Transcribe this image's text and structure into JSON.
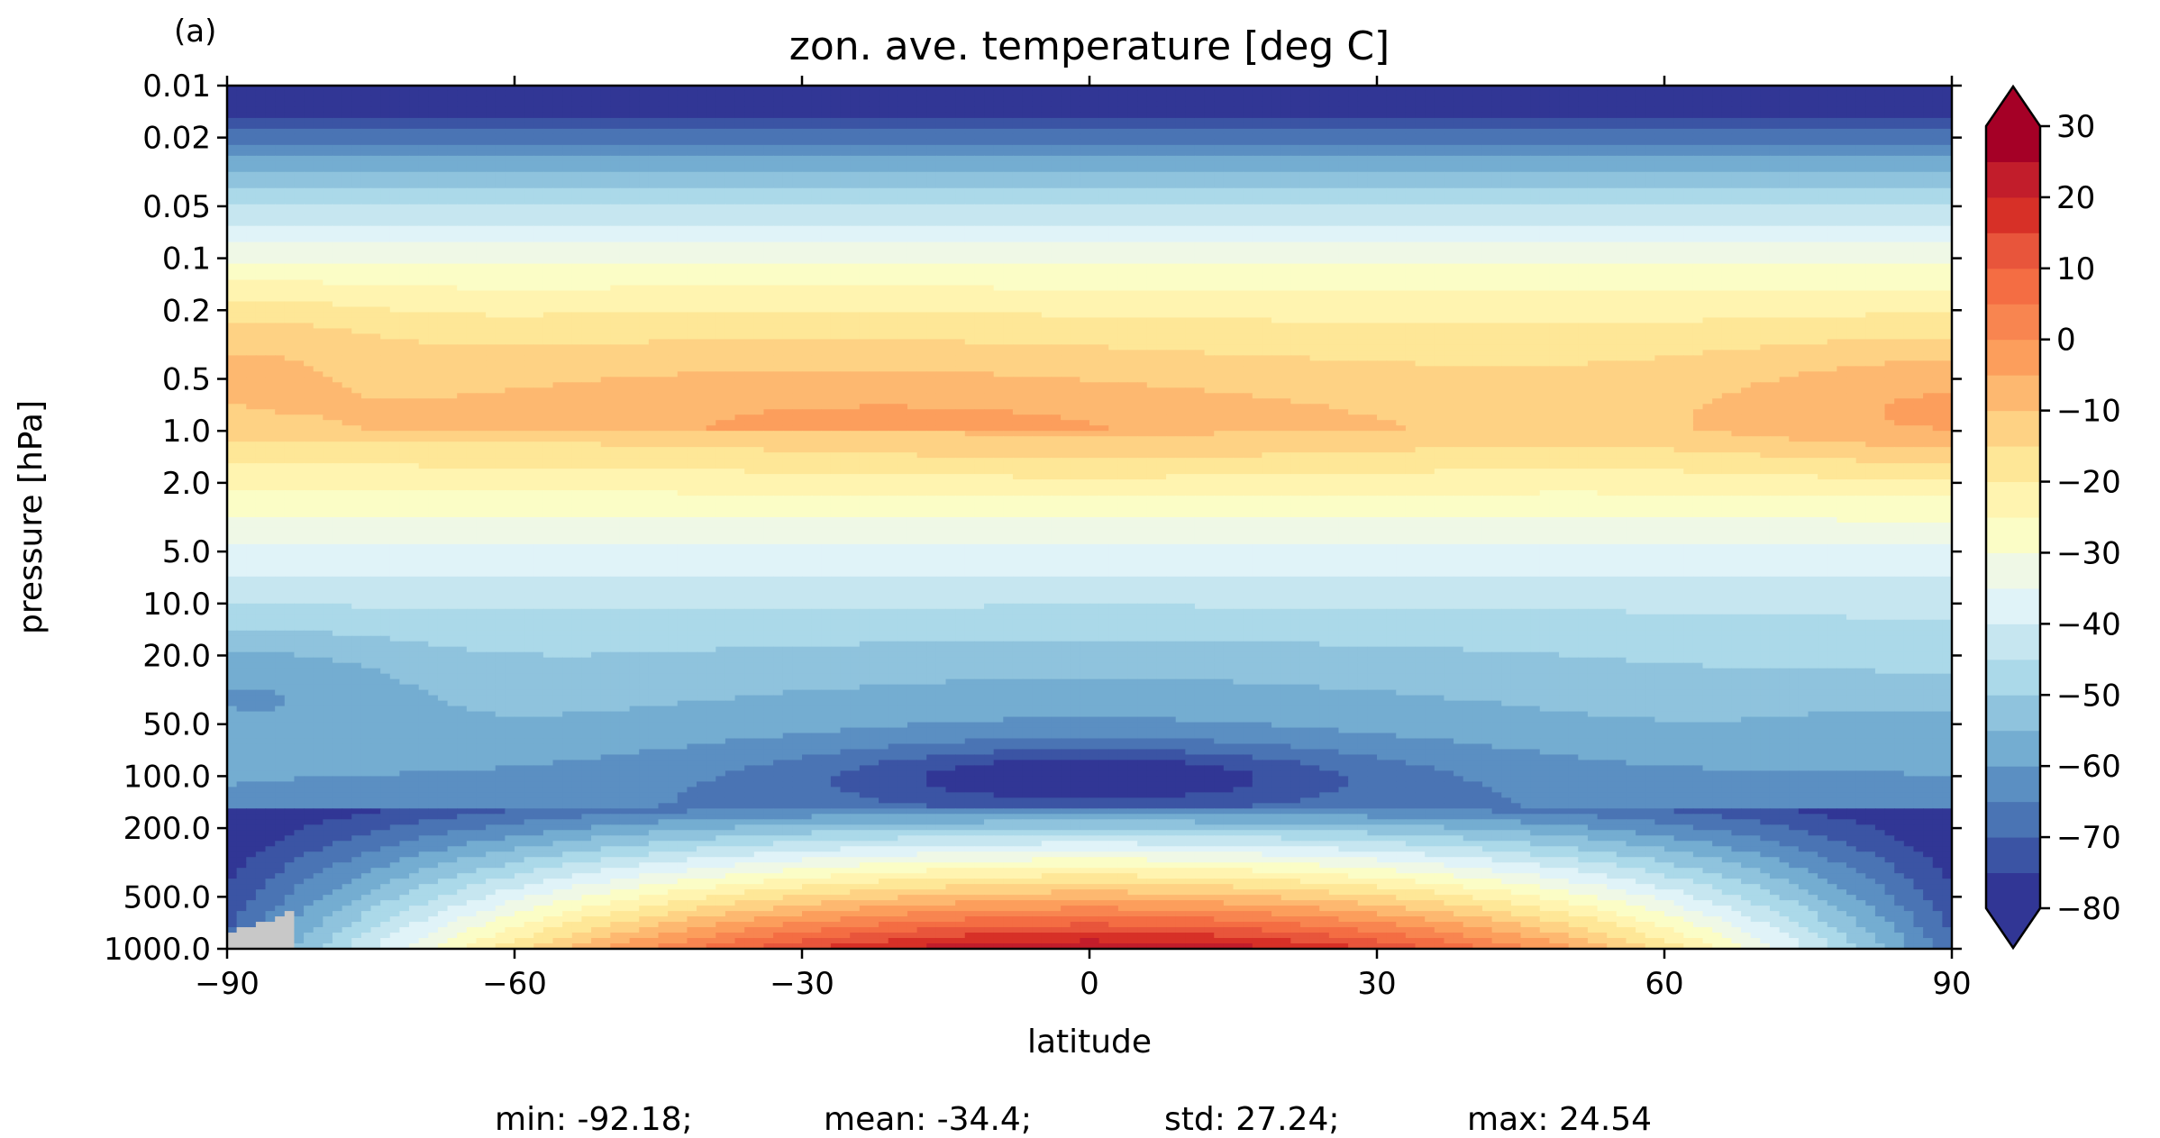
{
  "chart_data": {
    "type": "heatmap",
    "subtype": "filled-contour",
    "panel_label": "(a)",
    "title": "zon. ave. temperature [deg C]",
    "xlabel": "latitude",
    "ylabel": "pressure [hPa]",
    "x_range": [
      -90,
      90
    ],
    "x_ticks": [
      -90,
      -60,
      -30,
      0,
      30,
      60,
      90
    ],
    "x_tick_labels": [
      "−90",
      "−60",
      "−30",
      "0",
      "30",
      "60",
      "90"
    ],
    "y_range": [
      1000,
      0.01
    ],
    "y_scale": "log",
    "y_inverted": true,
    "y_ticks": [
      0.01,
      0.02,
      0.05,
      0.1,
      0.2,
      0.5,
      1.0,
      2.0,
      5.0,
      10.0,
      20.0,
      50.0,
      100.0,
      200.0,
      500.0,
      1000.0
    ],
    "y_tick_labels": [
      "0.01",
      "0.02",
      "0.05",
      "0.1",
      "0.2",
      "0.5",
      "1.0",
      "2.0",
      "5.0",
      "10.0",
      "20.0",
      "50.0",
      "100.0",
      "200.0",
      "500.0",
      "1000.0"
    ],
    "colorbar": {
      "min": -80,
      "max": 30,
      "step": 5,
      "extend": "both",
      "ticks": [
        30,
        20,
        10,
        0,
        -10,
        -20,
        -30,
        -40,
        -50,
        -60,
        -70,
        -80
      ],
      "tick_labels": [
        "30",
        "20",
        "10",
        "0",
        "−10",
        "−20",
        "−30",
        "−40",
        "−50",
        "−60",
        "−70",
        "−80"
      ],
      "colormap": "RdYlBu_r",
      "levels": [
        {
          "from": -80,
          "to": -75,
          "color": "#313695"
        },
        {
          "from": -75,
          "to": -70,
          "color": "#3b54a4"
        },
        {
          "from": -70,
          "to": -65,
          "color": "#4a74b4"
        },
        {
          "from": -65,
          "to": -60,
          "color": "#5b8fc2"
        },
        {
          "from": -60,
          "to": -55,
          "color": "#74add1"
        },
        {
          "from": -55,
          "to": -50,
          "color": "#8fc3dd"
        },
        {
          "from": -50,
          "to": -45,
          "color": "#abd9e9"
        },
        {
          "from": -45,
          "to": -40,
          "color": "#c6e6f0"
        },
        {
          "from": -40,
          "to": -35,
          "color": "#e0f3f8"
        },
        {
          "from": -35,
          "to": -30,
          "color": "#eff8e6"
        },
        {
          "from": -30,
          "to": -25,
          "color": "#fbfdc6"
        },
        {
          "from": -25,
          "to": -20,
          "color": "#fff4b0"
        },
        {
          "from": -20,
          "to": -15,
          "color": "#fee797"
        },
        {
          "from": -15,
          "to": -10,
          "color": "#fed284"
        },
        {
          "from": -10,
          "to": -5,
          "color": "#fdb870"
        },
        {
          "from": -5,
          "to": 0,
          "color": "#fc9e5c"
        },
        {
          "from": 0,
          "to": 5,
          "color": "#f88550"
        },
        {
          "from": 5,
          "to": 10,
          "color": "#f46d43"
        },
        {
          "from": 10,
          "to": 15,
          "color": "#e8553b"
        },
        {
          "from": 15,
          "to": 20,
          "color": "#d73027"
        },
        {
          "from": 20,
          "to": 25,
          "color": "#c21d2b"
        },
        {
          "from": 25,
          "to": 30,
          "color": "#a50026"
        }
      ],
      "under_color": "#313695",
      "over_color": "#a50026"
    },
    "missing_color": "#c8c8c8",
    "stats": {
      "min": "min: -92.18;",
      "mean": "mean: -34.4;",
      "std": "std: 27.24;",
      "max": "max: 24.54"
    }
  }
}
